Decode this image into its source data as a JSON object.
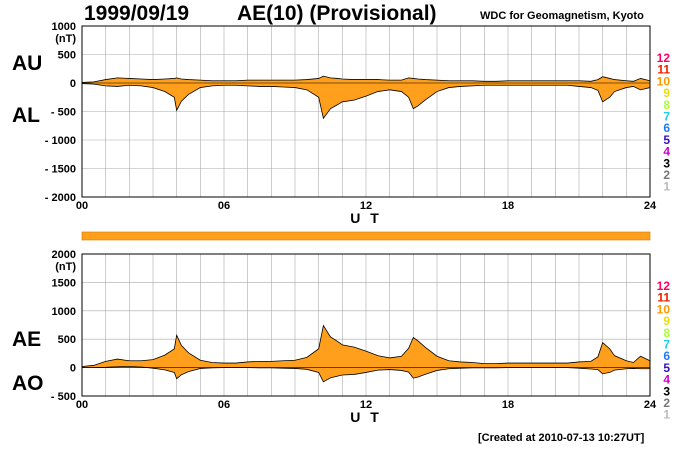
{
  "header": {
    "date": "1999/09/19",
    "title": "AE(10) (Provisional)",
    "source": "WDC for Geomagnetism, Kyoto"
  },
  "footer": {
    "created": "[Created at 2010-07-13 10:27UT]"
  },
  "colors": {
    "fill": "#ff9f1c",
    "line": "#000000",
    "grid": "#aaaaaa"
  },
  "legend_levels": [
    {
      "label": "12",
      "color": "#ff0066"
    },
    {
      "label": "11",
      "color": "#ee2200"
    },
    {
      "label": "10",
      "color": "#ff9900"
    },
    {
      "label": "9",
      "color": "#eedd00"
    },
    {
      "label": "8",
      "color": "#aaff33"
    },
    {
      "label": "7",
      "color": "#22ccee"
    },
    {
      "label": "6",
      "color": "#2277ff"
    },
    {
      "label": "5",
      "color": "#3311bb"
    },
    {
      "label": "4",
      "color": "#cc00cc"
    },
    {
      "label": "3",
      "color": "#000000"
    },
    {
      "label": "2",
      "color": "#777777"
    },
    {
      "label": "1",
      "color": "#bbbbbb"
    }
  ],
  "chart_data": [
    {
      "type": "area",
      "name": "AU/AL",
      "upper_label": "AU",
      "lower_label": "AL",
      "unit": "(nT)",
      "xlabel": "U T",
      "xlim": [
        0,
        24
      ],
      "ylim": [
        -2000,
        1000
      ],
      "yticks": [
        1000,
        500,
        0,
        -500,
        -1000,
        -1500,
        -2000
      ],
      "ytick_labels": [
        "1000",
        "500",
        "0",
        "- 500",
        "- 1000",
        "- 1500",
        "- 2000"
      ],
      "xticks": [
        0,
        6,
        12,
        18,
        24
      ],
      "xtick_labels": [
        "00",
        "06",
        "12",
        "18",
        "24"
      ],
      "grid": true,
      "x": [
        0,
        0.5,
        1,
        1.5,
        2,
        2.5,
        3,
        3.5,
        3.9,
        4.0,
        4.2,
        4.5,
        5,
        5.5,
        6,
        6.5,
        7,
        7.5,
        8,
        8.5,
        9,
        9.5,
        10,
        10.2,
        10.5,
        10.8,
        11,
        11.5,
        12,
        12.5,
        13,
        13.5,
        13.8,
        14,
        14.2,
        14.5,
        15,
        15.5,
        16,
        16.5,
        17,
        17.5,
        18,
        18.5,
        19,
        19.5,
        20,
        20.5,
        21,
        21.5,
        21.8,
        22,
        22.3,
        22.5,
        23,
        23.3,
        23.6,
        24
      ],
      "AU": [
        10,
        20,
        60,
        90,
        80,
        70,
        60,
        70,
        80,
        90,
        70,
        60,
        50,
        40,
        40,
        40,
        50,
        50,
        50,
        50,
        50,
        60,
        80,
        120,
        90,
        80,
        70,
        60,
        60,
        60,
        50,
        50,
        90,
        80,
        70,
        60,
        50,
        40,
        40,
        40,
        30,
        30,
        40,
        40,
        40,
        40,
        40,
        40,
        40,
        30,
        60,
        110,
        80,
        60,
        40,
        30,
        80,
        40
      ],
      "AL": [
        -10,
        -20,
        -50,
        -60,
        -40,
        -50,
        -80,
        -150,
        -250,
        -480,
        -320,
        -200,
        -80,
        -50,
        -40,
        -40,
        -50,
        -60,
        -60,
        -70,
        -80,
        -120,
        -250,
        -620,
        -450,
        -380,
        -330,
        -300,
        -230,
        -150,
        -120,
        -150,
        -250,
        -450,
        -400,
        -300,
        -150,
        -80,
        -60,
        -50,
        -40,
        -40,
        -40,
        -40,
        -40,
        -40,
        -40,
        -40,
        -60,
        -80,
        -130,
        -330,
        -250,
        -150,
        -80,
        -60,
        -120,
        -80
      ]
    },
    {
      "type": "area",
      "name": "AE/AO",
      "upper_label": "AE",
      "lower_label": "AO",
      "unit": "(nT)",
      "xlabel": "U T",
      "xlim": [
        0,
        24
      ],
      "ylim": [
        -500,
        2000
      ],
      "yticks": [
        2000,
        1500,
        1000,
        500,
        0,
        -500
      ],
      "ytick_labels": [
        "2000",
        "1500",
        "1000",
        "500",
        "0",
        "- 500"
      ],
      "xticks": [
        0,
        6,
        12,
        18,
        24
      ],
      "xtick_labels": [
        "00",
        "06",
        "12",
        "18",
        "24"
      ],
      "grid": true,
      "x": [
        0,
        0.5,
        1,
        1.5,
        2,
        2.5,
        3,
        3.5,
        3.9,
        4.0,
        4.2,
        4.5,
        5,
        5.5,
        6,
        6.5,
        7,
        7.5,
        8,
        8.5,
        9,
        9.5,
        10,
        10.2,
        10.5,
        10.8,
        11,
        11.5,
        12,
        12.5,
        13,
        13.5,
        13.8,
        14,
        14.2,
        14.5,
        15,
        15.5,
        16,
        16.5,
        17,
        17.5,
        18,
        18.5,
        19,
        19.5,
        20,
        20.5,
        21,
        21.5,
        21.8,
        22,
        22.3,
        22.5,
        23,
        23.3,
        23.6,
        24
      ],
      "AE": [
        20,
        40,
        110,
        150,
        120,
        120,
        140,
        220,
        330,
        570,
        390,
        260,
        130,
        90,
        80,
        80,
        100,
        110,
        110,
        120,
        130,
        180,
        330,
        740,
        540,
        460,
        400,
        360,
        290,
        210,
        170,
        200,
        340,
        530,
        470,
        360,
        200,
        120,
        100,
        90,
        70,
        70,
        80,
        80,
        80,
        80,
        80,
        80,
        100,
        110,
        190,
        440,
        330,
        210,
        120,
        90,
        200,
        120
      ],
      "AO": [
        0,
        0,
        5,
        15,
        20,
        10,
        -10,
        -40,
        -85,
        -195,
        -125,
        -70,
        -15,
        -5,
        0,
        0,
        0,
        -5,
        -5,
        -10,
        -15,
        -30,
        -85,
        -250,
        -180,
        -150,
        -130,
        -120,
        -85,
        -45,
        -35,
        -50,
        -80,
        -185,
        -165,
        -120,
        -50,
        -20,
        -10,
        -5,
        -5,
        -5,
        0,
        0,
        0,
        0,
        0,
        0,
        -10,
        -25,
        -35,
        -110,
        -85,
        -45,
        -20,
        -15,
        -20,
        -20
      ]
    }
  ]
}
